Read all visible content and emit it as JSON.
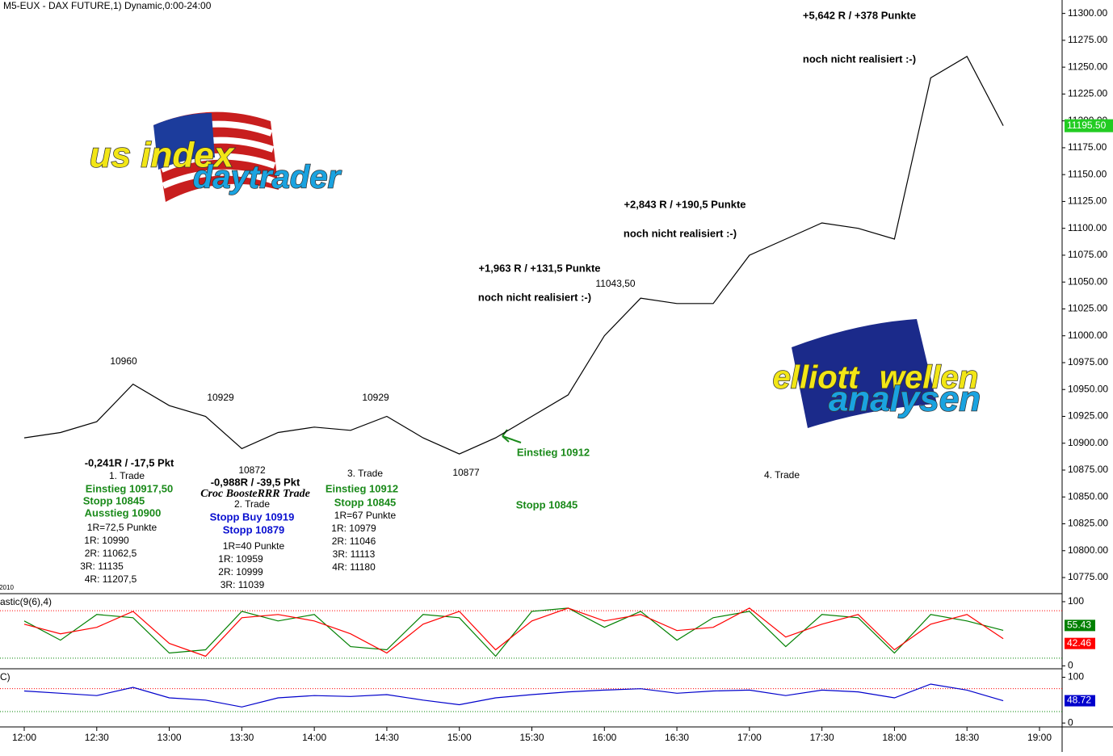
{
  "chart_data": [
    {
      "type": "line",
      "title": "M5-EUX - DAX FUTURE,1) Dynamic,0:00-24:00",
      "color": "#000000",
      "categories": [
        "12:00",
        null,
        "12:30",
        null,
        "13:00",
        null,
        "13:30",
        null,
        "14:00",
        null,
        "14:30",
        null,
        "15:00",
        null,
        "15:30",
        null,
        "16:00",
        null,
        "16:30",
        null,
        "17:00",
        null,
        "17:30",
        null,
        "18:00",
        null,
        "18:30",
        null,
        "19:00"
      ],
      "values": [
        10905,
        10910,
        10920,
        10955,
        10935,
        10925,
        10895,
        10910,
        10915,
        10912,
        10925,
        10905,
        10890,
        10905,
        10925,
        10945,
        11000,
        11035,
        11030,
        11030,
        11075,
        11090,
        11105,
        11100,
        11090,
        11240,
        11260,
        11195.5,
        null
      ],
      "ylim": [
        10760,
        11312.5
      ],
      "yticks": [
        {
          "value": 10775,
          "label": "10775.00"
        },
        {
          "value": 10800,
          "label": "10800.00"
        },
        {
          "value": 10825,
          "label": "10825.00"
        },
        {
          "value": 10850,
          "label": "10850.00"
        },
        {
          "value": 10875,
          "label": "10875.00"
        },
        {
          "value": 10900,
          "label": "10900.00"
        },
        {
          "value": 10925,
          "label": "10925.00"
        },
        {
          "value": 10950,
          "label": "10950.00"
        },
        {
          "value": 10975,
          "label": "10975.00"
        },
        {
          "value": 11000,
          "label": "11000.00"
        },
        {
          "value": 11025,
          "label": "11025.00"
        },
        {
          "value": 11050,
          "label": "11050.00"
        },
        {
          "value": 11075,
          "label": "11075.00"
        },
        {
          "value": 11100,
          "label": "11100.00"
        },
        {
          "value": 11125,
          "label": "11125.00"
        },
        {
          "value": 11150,
          "label": "11150.00"
        },
        {
          "value": 11175,
          "label": "11175.00"
        },
        {
          "value": 11200,
          "label": "11200.00"
        },
        {
          "value": 11225,
          "label": "11225.00"
        },
        {
          "value": 11250,
          "label": "11250.00"
        },
        {
          "value": 11275,
          "label": "11275.00"
        },
        {
          "value": 11300,
          "label": "11300.00"
        }
      ],
      "current_price": {
        "value": 11195.5,
        "label": "11195.50"
      },
      "annotations": [
        "10960",
        "10929",
        "10872",
        "10929",
        "10877",
        "11043,50",
        "-0,241R / -17,5 Pkt",
        "1. Trade",
        "Einstieg 10917,50",
        "Stopp 10845",
        "Ausstieg 10900",
        "1R=72,5 Punkte",
        "1R: 10990",
        "2R: 11062,5",
        "3R: 11135",
        "4R: 11207,5",
        "-0,988R / -39,5 Pkt",
        "Croc BoosteRRR Trade",
        "2. Trade",
        "Stopp Buy 10919",
        "Stopp 10879",
        "1R=40 Punkte",
        "1R: 10959",
        "2R: 10999",
        "3R: 11039",
        "3. Trade",
        "Einstieg 10912",
        "Stopp 10845",
        "1R=67 Punkte",
        "1R: 10979",
        "2R: 11046",
        "3R: 11113",
        "4R: 11180",
        "Einstieg 10912",
        "Stopp 10845",
        "4. Trade",
        "+1,963 R / +131,5 Punkte",
        "noch nicht realisiert :-)",
        "+2,843 R / +190,5 Punkte",
        "noch nicht realisiert :-)",
        "+5,642 R / +378 Punkte",
        "noch nicht realisiert :-)",
        "2010"
      ],
      "logos": [
        "us index",
        "daytrader",
        "elliott",
        "wellen",
        "analysen"
      ]
    },
    {
      "type": "line",
      "title": "astic(9(6),4)",
      "ylim": [
        -2,
        110
      ],
      "yticks": [
        0,
        100
      ],
      "levels": [
        {
          "value": 86,
          "color": "#ff0000"
        },
        {
          "value": 12,
          "color": "#008000"
        }
      ],
      "series": [
        {
          "color": "#008000",
          "values": [
            70,
            40,
            80,
            75,
            20,
            25,
            85,
            70,
            80,
            30,
            25,
            80,
            75,
            15,
            85,
            90,
            60,
            85,
            40,
            75,
            85,
            30,
            80,
            75,
            20,
            80,
            70,
            55.43,
            null
          ],
          "last": 55.43
        },
        {
          "color": "#ff0000",
          "values": [
            65,
            50,
            60,
            85,
            35,
            15,
            75,
            80,
            70,
            50,
            20,
            65,
            85,
            25,
            70,
            90,
            70,
            80,
            55,
            60,
            90,
            45,
            65,
            80,
            25,
            65,
            80,
            42.46,
            null
          ],
          "last": 42.46
        }
      ]
    },
    {
      "type": "line",
      "title": "C)",
      "ylim": [
        -5,
        115
      ],
      "yticks": [
        0,
        100
      ],
      "levels": [
        {
          "value": 75,
          "color": "#ff0000"
        },
        {
          "value": 25,
          "color": "#008000"
        }
      ],
      "series": [
        {
          "color": "#0000cc",
          "values": [
            70,
            65,
            60,
            78,
            55,
            50,
            35,
            55,
            60,
            58,
            62,
            50,
            40,
            55,
            62,
            68,
            72,
            75,
            65,
            70,
            72,
            60,
            72,
            68,
            55,
            85,
            72,
            48.72,
            null
          ],
          "last": 48.72
        }
      ]
    }
  ]
}
